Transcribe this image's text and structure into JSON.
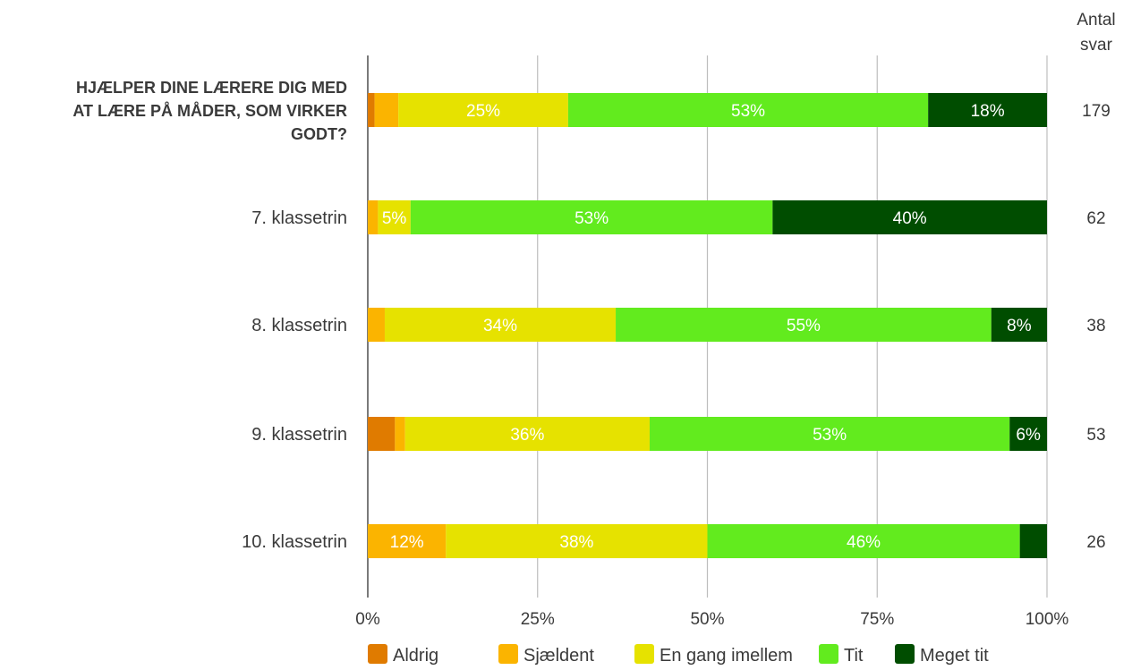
{
  "chart_data": {
    "type": "bar",
    "orientation": "horizontal",
    "stacked": true,
    "xlim": [
      0,
      100
    ],
    "x_ticks": [
      "0%",
      "25%",
      "50%",
      "75%",
      "100%"
    ],
    "grid": true,
    "legend_position": "bottom",
    "count_header": [
      "Antal",
      "svar"
    ],
    "categories": [
      {
        "label_lines": [
          "HJÆLPER DINE LÆRERE DIG MED",
          "AT LÆRE PÅ MÅDER, SOM VIRKER",
          "GODT?"
        ],
        "bold": true,
        "count": "179"
      },
      {
        "label_lines": [
          "7. klassetrin"
        ],
        "bold": false,
        "count": "62"
      },
      {
        "label_lines": [
          "8. klassetrin"
        ],
        "bold": false,
        "count": "38"
      },
      {
        "label_lines": [
          "9. klassetrin"
        ],
        "bold": false,
        "count": "53"
      },
      {
        "label_lines": [
          "10. klassetrin"
        ],
        "bold": false,
        "count": "26"
      }
    ],
    "series": [
      {
        "name": "Aldrig",
        "color": "#e07b00",
        "values": [
          1,
          0,
          0,
          4,
          0
        ],
        "labels": [
          "",
          "",
          "",
          "",
          ""
        ]
      },
      {
        "name": "Sjældent",
        "color": "#fbb400",
        "values": [
          3.5,
          1.5,
          2.5,
          1.5,
          11.5
        ],
        "labels": [
          "",
          "",
          "",
          "",
          "12%"
        ]
      },
      {
        "name": "En gang imellem",
        "color": "#e6e200",
        "values": [
          25,
          4.8,
          34,
          36,
          38.5
        ],
        "labels": [
          "25%",
          "5%",
          "34%",
          "36%",
          "38%"
        ]
      },
      {
        "name": "Tit",
        "color": "#62eb1e",
        "values": [
          53,
          53.3,
          55.3,
          53,
          46
        ],
        "labels": [
          "53%",
          "53%",
          "55%",
          "53%",
          "46%"
        ]
      },
      {
        "name": "Meget tit",
        "color": "#004d00",
        "values": [
          17.5,
          40.4,
          8.2,
          5.5,
          4
        ],
        "labels": [
          "18%",
          "40%",
          "8%",
          "6%",
          ""
        ]
      }
    ]
  }
}
